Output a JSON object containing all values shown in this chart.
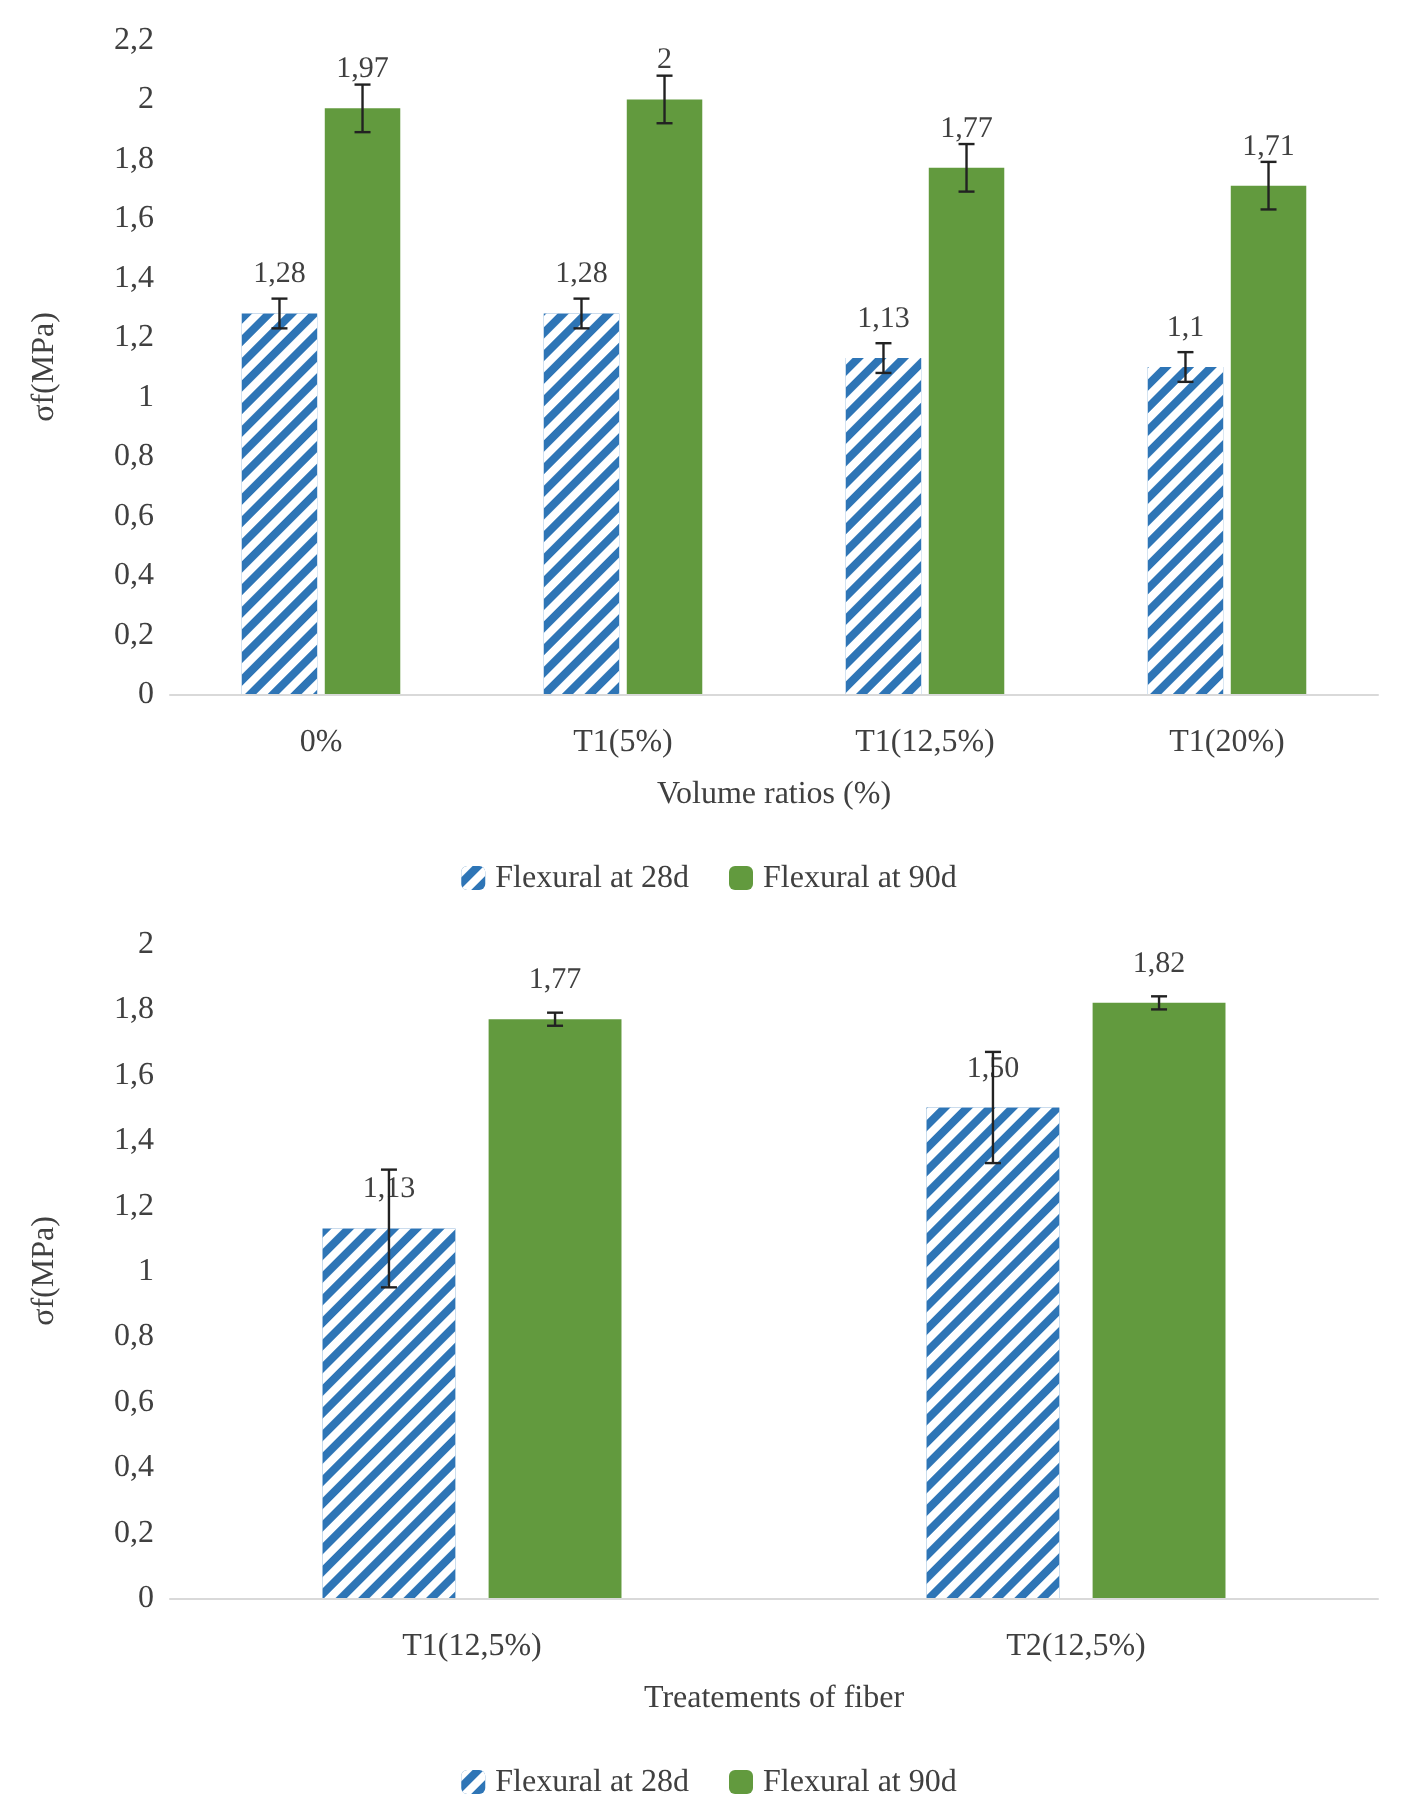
{
  "chart_data": [
    {
      "type": "bar",
      "xlabel": "Volume ratios (%)",
      "ylabel": "σf(MPa)",
      "categories": [
        "0%",
        "T1(5%)",
        "T1(12,5%)",
        "T1(20%)"
      ],
      "series": [
        {
          "name": "Flexural at 28d",
          "color": "#2e75b6",
          "values": [
            1.28,
            1.28,
            1.13,
            1.1
          ],
          "errors": [
            0.05,
            0.05,
            0.05,
            0.05
          ],
          "value_labels": [
            "1,28",
            "1,28",
            "1,13",
            "1,1"
          ]
        },
        {
          "name": "Flexural at 90d",
          "color": "#629a3e",
          "values": [
            1.97,
            2,
            1.77,
            1.71
          ],
          "errors": [
            0.08,
            0.08,
            0.08,
            0.08
          ],
          "value_labels": [
            "1,97",
            "2",
            "1,77",
            "1,71"
          ]
        }
      ],
      "ylim": [
        0,
        2.2
      ],
      "yticks": [
        0,
        {
          "value": 0.2,
          "label": "0,2"
        },
        {
          "value": 0.4,
          "label": "0,4"
        },
        {
          "value": 0.6,
          "label": "0,6"
        },
        {
          "value": 0.8,
          "label": "0,8"
        },
        1,
        {
          "value": 1.2,
          "label": "1,2"
        },
        {
          "value": 1.4,
          "label": "1,4"
        },
        {
          "value": 1.6,
          "label": "1,6"
        },
        {
          "value": 1.8,
          "label": "1,8"
        },
        2,
        {
          "value": 2.2,
          "label": "2,2"
        }
      ],
      "grid": false,
      "legend": "bottom"
    },
    {
      "type": "bar",
      "xlabel": "Treatements of fiber",
      "ylabel": "σf(MPa)",
      "categories": [
        "T1(12,5%)",
        "T2(12,5%)"
      ],
      "series": [
        {
          "name": "Flexural at 28d",
          "color": "#2e75b6",
          "values": [
            1.13,
            1.5
          ],
          "errors": [
            0.18,
            0.17
          ],
          "value_labels": [
            "1,13",
            "1,50"
          ]
        },
        {
          "name": "Flexural at 90d",
          "color": "#629a3e",
          "values": [
            1.77,
            1.82
          ],
          "errors": [
            0.02,
            0.02
          ],
          "value_labels": [
            "1,77",
            "1,82"
          ]
        }
      ],
      "ylim": [
        0,
        2
      ],
      "yticks": [
        0,
        {
          "value": 0.2,
          "label": "0,2"
        },
        {
          "value": 0.4,
          "label": "0,4"
        },
        {
          "value": 0.6,
          "label": "0,6"
        },
        {
          "value": 0.8,
          "label": "0,8"
        },
        1,
        {
          "value": 1.2,
          "label": "1,2"
        },
        {
          "value": 1.4,
          "label": "1,4"
        },
        {
          "value": 1.6,
          "label": "1,6"
        },
        {
          "value": 1.8,
          "label": "1,8"
        },
        2
      ],
      "grid": false,
      "legend": "bottom"
    }
  ]
}
